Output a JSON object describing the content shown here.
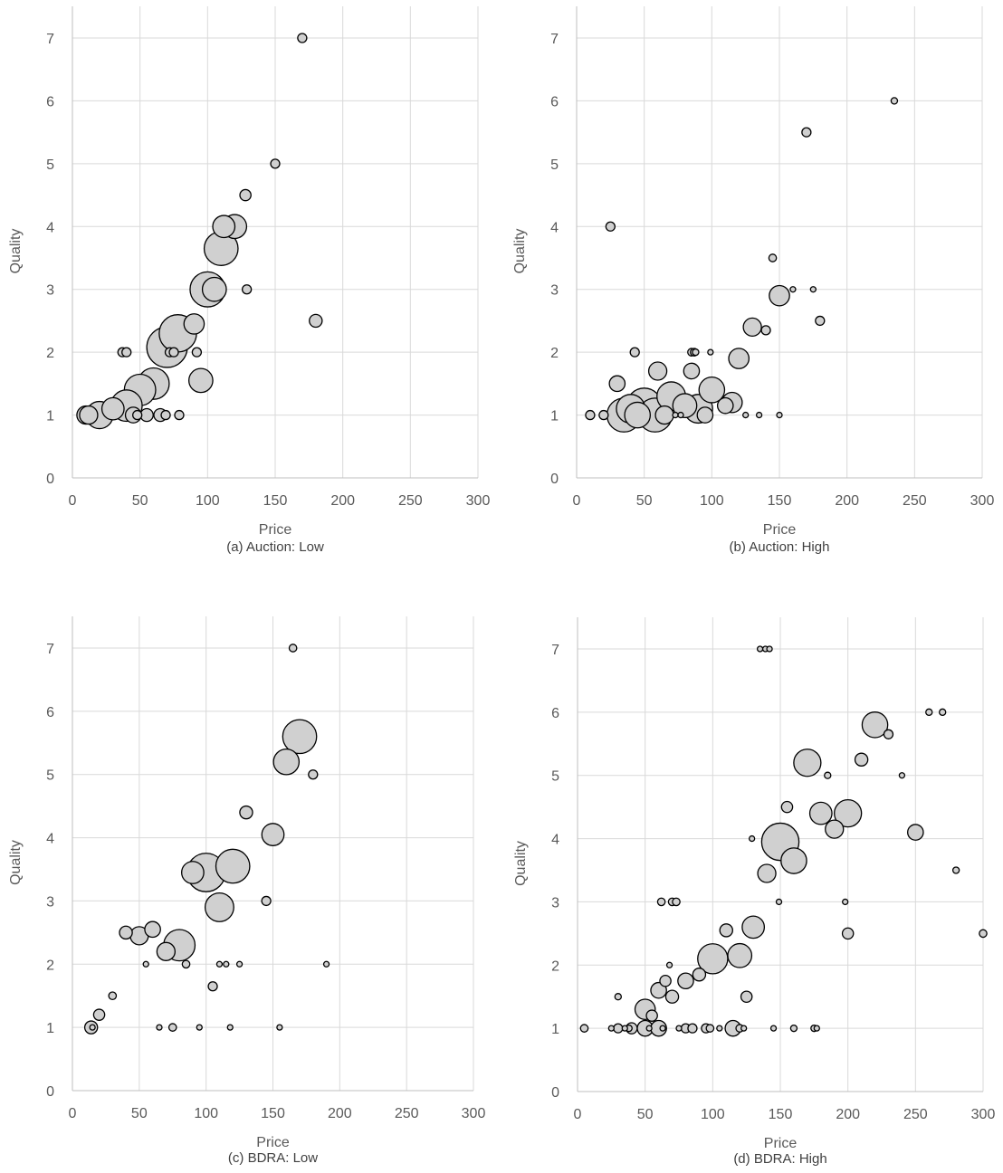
{
  "colors": {
    "bubble_fill": "#d0d0d0",
    "bubble_stroke": "#000000",
    "grid": "#d9d9d9",
    "text": "#595959"
  },
  "chart_data": [
    {
      "type": "scatter",
      "caption": "(a) Auction: Low",
      "xlabel": "Price",
      "ylabel": "Quality",
      "xlim": [
        0,
        300
      ],
      "ylim": [
        0,
        7
      ],
      "xticks": [
        0,
        50,
        100,
        150,
        200,
        250,
        300
      ],
      "yticks": [
        0,
        1,
        2,
        3,
        4,
        5,
        6,
        7
      ],
      "grid": true,
      "legend": "none",
      "points": [
        {
          "x": 170,
          "y": 7,
          "size": 1
        },
        {
          "x": 150,
          "y": 5,
          "size": 1
        },
        {
          "x": 128,
          "y": 4.5,
          "size": 1.5
        },
        {
          "x": 112,
          "y": 4,
          "size": 6
        },
        {
          "x": 120,
          "y": 4,
          "size": 7
        },
        {
          "x": 110,
          "y": 3.65,
          "size": 14
        },
        {
          "x": 100,
          "y": 3,
          "size": 15
        },
        {
          "x": 105,
          "y": 3,
          "size": 7
        },
        {
          "x": 129,
          "y": 3,
          "size": 1
        },
        {
          "x": 180,
          "y": 2.5,
          "size": 2
        },
        {
          "x": 90,
          "y": 2.45,
          "size": 5
        },
        {
          "x": 78,
          "y": 2.3,
          "size": 17
        },
        {
          "x": 70,
          "y": 2.08,
          "size": 20
        },
        {
          "x": 95,
          "y": 1.55,
          "size": 7
        },
        {
          "x": 92,
          "y": 2,
          "size": 1
        },
        {
          "x": 72,
          "y": 2,
          "size": 1
        },
        {
          "x": 75,
          "y": 2,
          "size": 1
        },
        {
          "x": 37,
          "y": 2,
          "size": 1
        },
        {
          "x": 40,
          "y": 2,
          "size": 1
        },
        {
          "x": 60,
          "y": 1.5,
          "size": 12
        },
        {
          "x": 50,
          "y": 1.4,
          "size": 12
        },
        {
          "x": 40,
          "y": 1.15,
          "size": 12
        },
        {
          "x": 30,
          "y": 1.1,
          "size": 6
        },
        {
          "x": 20,
          "y": 1,
          "size": 9
        },
        {
          "x": 10,
          "y": 1,
          "size": 4
        },
        {
          "x": 12,
          "y": 1,
          "size": 4
        },
        {
          "x": 45,
          "y": 1,
          "size": 3
        },
        {
          "x": 55,
          "y": 1,
          "size": 2
        },
        {
          "x": 65,
          "y": 1,
          "size": 2
        },
        {
          "x": 69,
          "y": 1,
          "size": 1
        },
        {
          "x": 79,
          "y": 1,
          "size": 1
        },
        {
          "x": 48,
          "y": 1,
          "size": 1
        }
      ]
    },
    {
      "type": "scatter",
      "caption": "(b) Auction: High",
      "xlabel": "Price",
      "ylabel": "Quality",
      "xlim": [
        0,
        300
      ],
      "ylim": [
        0,
        7
      ],
      "xticks": [
        0,
        50,
        100,
        150,
        200,
        250,
        300
      ],
      "yticks": [
        0,
        1,
        2,
        3,
        4,
        5,
        6,
        7
      ],
      "grid": true,
      "legend": "none",
      "points": [
        {
          "x": 235,
          "y": 6,
          "size": 0.5
        },
        {
          "x": 170,
          "y": 5.5,
          "size": 1
        },
        {
          "x": 25,
          "y": 4,
          "size": 1
        },
        {
          "x": 145,
          "y": 3.5,
          "size": 0.7
        },
        {
          "x": 160,
          "y": 3,
          "size": 0.3
        },
        {
          "x": 175,
          "y": 3,
          "size": 0.3
        },
        {
          "x": 150,
          "y": 2.9,
          "size": 5
        },
        {
          "x": 180,
          "y": 2.5,
          "size": 1
        },
        {
          "x": 130,
          "y": 2.4,
          "size": 4
        },
        {
          "x": 140,
          "y": 2.35,
          "size": 1
        },
        {
          "x": 43,
          "y": 2,
          "size": 1
        },
        {
          "x": 85,
          "y": 2,
          "size": 0.7
        },
        {
          "x": 87,
          "y": 2,
          "size": 0.7
        },
        {
          "x": 88,
          "y": 2,
          "size": 0.5
        },
        {
          "x": 99,
          "y": 2,
          "size": 0.3
        },
        {
          "x": 120,
          "y": 1.9,
          "size": 5
        },
        {
          "x": 85,
          "y": 1.7,
          "size": 3
        },
        {
          "x": 60,
          "y": 1.7,
          "size": 4
        },
        {
          "x": 30,
          "y": 1.5,
          "size": 3
        },
        {
          "x": 100,
          "y": 1.4,
          "size": 8
        },
        {
          "x": 70,
          "y": 1.3,
          "size": 10
        },
        {
          "x": 115,
          "y": 1.2,
          "size": 5
        },
        {
          "x": 110,
          "y": 1.15,
          "size": 3
        },
        {
          "x": 50,
          "y": 1.15,
          "size": 15
        },
        {
          "x": 80,
          "y": 1.15,
          "size": 7
        },
        {
          "x": 40,
          "y": 1.1,
          "size": 10
        },
        {
          "x": 90,
          "y": 1.1,
          "size": 10
        },
        {
          "x": 35,
          "y": 1,
          "size": 14
        },
        {
          "x": 58,
          "y": 1,
          "size": 14
        },
        {
          "x": 45,
          "y": 1,
          "size": 8
        },
        {
          "x": 65,
          "y": 1,
          "size": 4
        },
        {
          "x": 95,
          "y": 1,
          "size": 3
        },
        {
          "x": 10,
          "y": 1,
          "size": 1
        },
        {
          "x": 20,
          "y": 1,
          "size": 1
        },
        {
          "x": 73,
          "y": 1,
          "size": 0.3
        },
        {
          "x": 77,
          "y": 1,
          "size": 0.3
        },
        {
          "x": 125,
          "y": 1,
          "size": 0.2
        },
        {
          "x": 135,
          "y": 1,
          "size": 0.2
        },
        {
          "x": 150,
          "y": 1,
          "size": 0.2
        }
      ]
    },
    {
      "type": "scatter",
      "caption": "(c) BDRA: Low",
      "xlabel": "Price",
      "ylabel": "Quality",
      "xlim": [
        0,
        300
      ],
      "ylim": [
        0,
        7
      ],
      "xticks": [
        0,
        50,
        100,
        150,
        200,
        250,
        300
      ],
      "yticks": [
        0,
        1,
        2,
        3,
        4,
        5,
        6,
        7
      ],
      "grid": true,
      "legend": "none",
      "points": [
        {
          "x": 165,
          "y": 7,
          "size": 0.7
        },
        {
          "x": 170,
          "y": 5.6,
          "size": 14
        },
        {
          "x": 160,
          "y": 5.2,
          "size": 8
        },
        {
          "x": 180,
          "y": 5,
          "size": 1
        },
        {
          "x": 130,
          "y": 4.4,
          "size": 2
        },
        {
          "x": 150,
          "y": 4.05,
          "size": 6
        },
        {
          "x": 120,
          "y": 3.55,
          "size": 14
        },
        {
          "x": 100,
          "y": 3.45,
          "size": 18
        },
        {
          "x": 90,
          "y": 3.45,
          "size": 6
        },
        {
          "x": 145,
          "y": 3,
          "size": 1
        },
        {
          "x": 110,
          "y": 2.9,
          "size": 10
        },
        {
          "x": 80,
          "y": 2.3,
          "size": 12
        },
        {
          "x": 70,
          "y": 2.2,
          "size": 4
        },
        {
          "x": 60,
          "y": 2.55,
          "size": 3
        },
        {
          "x": 50,
          "y": 2.45,
          "size": 4
        },
        {
          "x": 40,
          "y": 2.5,
          "size": 2
        },
        {
          "x": 55,
          "y": 2,
          "size": 0.2
        },
        {
          "x": 85,
          "y": 2,
          "size": 0.7
        },
        {
          "x": 110,
          "y": 2,
          "size": 0.2
        },
        {
          "x": 115,
          "y": 2,
          "size": 0.2
        },
        {
          "x": 125,
          "y": 2,
          "size": 0.2
        },
        {
          "x": 190,
          "y": 2,
          "size": 0.2
        },
        {
          "x": 105,
          "y": 1.65,
          "size": 1
        },
        {
          "x": 30,
          "y": 1.5,
          "size": 0.7
        },
        {
          "x": 20,
          "y": 1.2,
          "size": 1.5
        },
        {
          "x": 14,
          "y": 1,
          "size": 2
        },
        {
          "x": 15,
          "y": 1,
          "size": 0.3
        },
        {
          "x": 65,
          "y": 1,
          "size": 0.2
        },
        {
          "x": 75,
          "y": 1,
          "size": 0.7
        },
        {
          "x": 95,
          "y": 1,
          "size": 0.2
        },
        {
          "x": 118,
          "y": 1,
          "size": 0.2
        },
        {
          "x": 155,
          "y": 1,
          "size": 0.2
        }
      ]
    },
    {
      "type": "scatter",
      "caption": "(d) BDRA: High",
      "xlabel": "Price",
      "ylabel": "Quality",
      "xlim": [
        0,
        300
      ],
      "ylim": [
        0,
        7
      ],
      "xticks": [
        0,
        50,
        100,
        150,
        200,
        250,
        300
      ],
      "yticks": [
        0,
        1,
        2,
        3,
        4,
        5,
        6,
        7
      ],
      "grid": true,
      "legend": "none",
      "points": [
        {
          "x": 135,
          "y": 7,
          "size": 0.2
        },
        {
          "x": 139,
          "y": 7,
          "size": 0.2
        },
        {
          "x": 142,
          "y": 7,
          "size": 0.2
        },
        {
          "x": 220,
          "y": 5.8,
          "size": 8
        },
        {
          "x": 230,
          "y": 5.65,
          "size": 1
        },
        {
          "x": 260,
          "y": 6,
          "size": 0.5
        },
        {
          "x": 270,
          "y": 6,
          "size": 0.5
        },
        {
          "x": 170,
          "y": 5.2,
          "size": 9
        },
        {
          "x": 210,
          "y": 5.25,
          "size": 2
        },
        {
          "x": 185,
          "y": 5,
          "size": 0.5
        },
        {
          "x": 240,
          "y": 5,
          "size": 0.2
        },
        {
          "x": 155,
          "y": 4.5,
          "size": 1.5
        },
        {
          "x": 180,
          "y": 4.4,
          "size": 6
        },
        {
          "x": 200,
          "y": 4.4,
          "size": 9
        },
        {
          "x": 190,
          "y": 4.15,
          "size": 4
        },
        {
          "x": 250,
          "y": 4.1,
          "size": 3
        },
        {
          "x": 150,
          "y": 3.95,
          "size": 17
        },
        {
          "x": 129,
          "y": 4,
          "size": 0.3
        },
        {
          "x": 160,
          "y": 3.65,
          "size": 8
        },
        {
          "x": 140,
          "y": 3.45,
          "size": 4
        },
        {
          "x": 280,
          "y": 3.5,
          "size": 0.5
        },
        {
          "x": 62,
          "y": 3,
          "size": 0.7
        },
        {
          "x": 70,
          "y": 3,
          "size": 0.7
        },
        {
          "x": 73,
          "y": 3,
          "size": 0.7
        },
        {
          "x": 149,
          "y": 3,
          "size": 0.2
        },
        {
          "x": 198,
          "y": 3,
          "size": 0.2
        },
        {
          "x": 130,
          "y": 2.6,
          "size": 6
        },
        {
          "x": 110,
          "y": 2.55,
          "size": 2
        },
        {
          "x": 200,
          "y": 2.5,
          "size": 1.5
        },
        {
          "x": 300,
          "y": 2.5,
          "size": 0.7
        },
        {
          "x": 100,
          "y": 2.1,
          "size": 11
        },
        {
          "x": 120,
          "y": 2.15,
          "size": 7
        },
        {
          "x": 68,
          "y": 2,
          "size": 0.2
        },
        {
          "x": 90,
          "y": 1.85,
          "size": 2
        },
        {
          "x": 80,
          "y": 1.75,
          "size": 3
        },
        {
          "x": 65,
          "y": 1.75,
          "size": 1.5
        },
        {
          "x": 60,
          "y": 1.6,
          "size": 3
        },
        {
          "x": 70,
          "y": 1.5,
          "size": 2
        },
        {
          "x": 125,
          "y": 1.5,
          "size": 1.5
        },
        {
          "x": 30,
          "y": 1.5,
          "size": 0.5
        },
        {
          "x": 50,
          "y": 1.3,
          "size": 5
        },
        {
          "x": 55,
          "y": 1.2,
          "size": 1.5
        },
        {
          "x": 5,
          "y": 1,
          "size": 0.7
        },
        {
          "x": 25,
          "y": 1,
          "size": 0.2
        },
        {
          "x": 30,
          "y": 1,
          "size": 1
        },
        {
          "x": 35,
          "y": 1,
          "size": 0.3
        },
        {
          "x": 38,
          "y": 1,
          "size": 0.5
        },
        {
          "x": 40,
          "y": 1,
          "size": 1.5
        },
        {
          "x": 50,
          "y": 1,
          "size": 3
        },
        {
          "x": 60,
          "y": 1,
          "size": 3
        },
        {
          "x": 53,
          "y": 1,
          "size": 0.3
        },
        {
          "x": 63,
          "y": 1,
          "size": 0.3
        },
        {
          "x": 75,
          "y": 1,
          "size": 0.3
        },
        {
          "x": 80,
          "y": 1,
          "size": 1
        },
        {
          "x": 85,
          "y": 1,
          "size": 1
        },
        {
          "x": 95,
          "y": 1,
          "size": 1
        },
        {
          "x": 98,
          "y": 1,
          "size": 0.7
        },
        {
          "x": 105,
          "y": 1,
          "size": 0.3
        },
        {
          "x": 115,
          "y": 1,
          "size": 3
        },
        {
          "x": 120,
          "y": 1,
          "size": 0.7
        },
        {
          "x": 123,
          "y": 1,
          "size": 0.3
        },
        {
          "x": 145,
          "y": 1,
          "size": 0.2
        },
        {
          "x": 160,
          "y": 1,
          "size": 0.5
        },
        {
          "x": 175,
          "y": 1,
          "size": 0.5
        },
        {
          "x": 177,
          "y": 1,
          "size": 0.3
        }
      ]
    }
  ]
}
